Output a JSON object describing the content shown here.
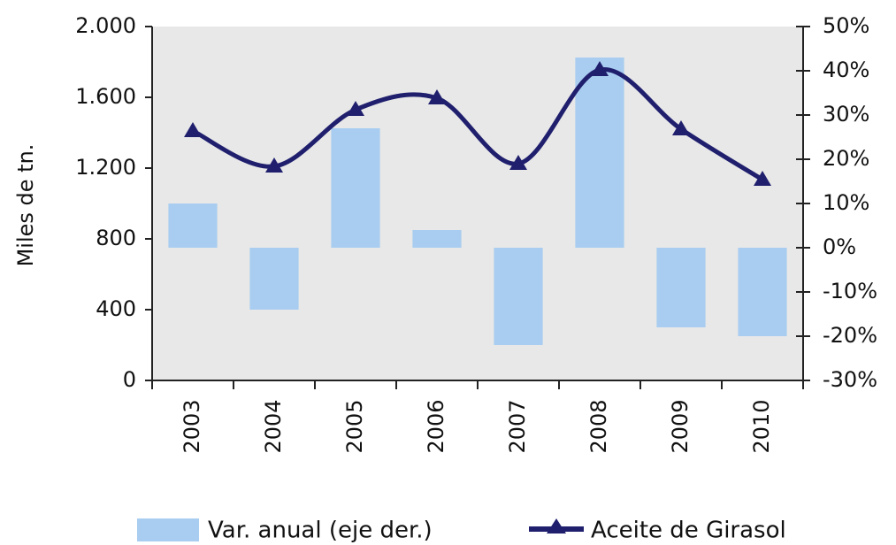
{
  "chart_data": {
    "type": "bar_line",
    "ylabel": "Miles de tn.",
    "categories": [
      "2003",
      "2004",
      "2005",
      "2006",
      "2007",
      "2008",
      "2009",
      "2010"
    ],
    "series": [
      {
        "name": "Var. anual (eje der.)",
        "type": "bar",
        "axis": "y2",
        "color": "#a9cdf0",
        "values": [
          10,
          -14,
          27,
          4,
          -22,
          43,
          -18,
          -20
        ]
      },
      {
        "name": "Aceite de Girasol",
        "type": "line",
        "axis": "y",
        "color": "#1f1f6e",
        "values": [
          1410,
          1210,
          1530,
          1595,
          1225,
          1755,
          1420,
          1135
        ]
      }
    ],
    "ylim": [
      0,
      2000
    ],
    "yticks": [
      0,
      400,
      800,
      {
        "value": 1200,
        "label": "1.200"
      },
      {
        "value": 1600,
        "label": "1.600"
      },
      {
        "value": 2000,
        "label": "2.000"
      }
    ],
    "y2lim": [
      -30,
      50
    ],
    "y2ticks": [
      {
        "value": -30,
        "label": "-30%"
      },
      {
        "value": -20,
        "label": "-20%"
      },
      {
        "value": -10,
        "label": "-10%"
      },
      {
        "value": 0,
        "label": "0%"
      },
      {
        "value": 10,
        "label": "10%"
      },
      {
        "value": 20,
        "label": "20%"
      },
      {
        "value": 30,
        "label": "30%"
      },
      {
        "value": 40,
        "label": "40%"
      },
      {
        "value": 50,
        "label": "50%"
      }
    ],
    "legend": "bottom"
  }
}
